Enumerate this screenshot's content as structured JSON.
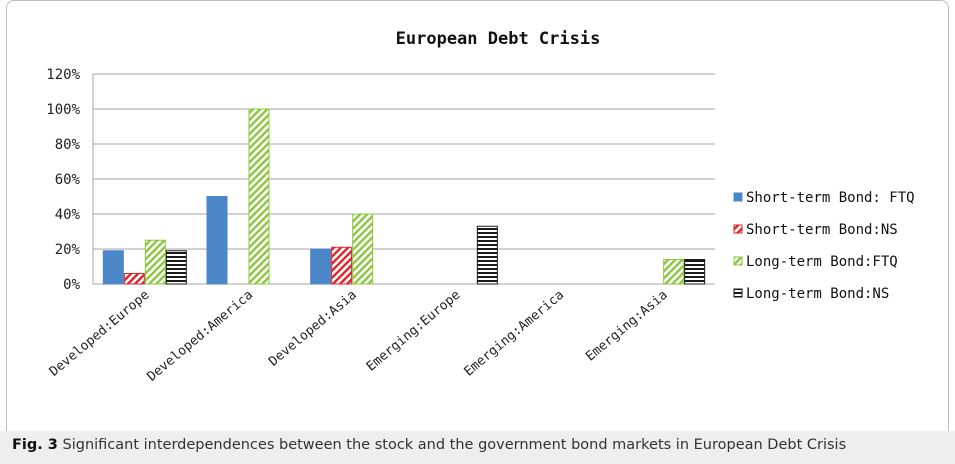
{
  "chart_data": {
    "type": "bar",
    "title": "European Debt Crisis",
    "xlabel": "",
    "ylabel": "",
    "ylim": [
      0,
      120
    ],
    "yticks": [
      0,
      20,
      40,
      60,
      80,
      100,
      120
    ],
    "ytick_labels": [
      "0%",
      "20%",
      "40%",
      "60%",
      "80%",
      "100%",
      "120%"
    ],
    "grid": true,
    "legend_position": "right",
    "categories": [
      "Developed:Europe",
      "Developed:America",
      "Developed:Asia",
      "Emerging:Europe",
      "Emerging:America",
      "Emerging:Asia"
    ],
    "series": [
      {
        "name": "Short-term Bond: FTQ",
        "values": [
          19,
          50,
          20,
          0,
          0,
          0
        ],
        "color": "#4a86c8",
        "pattern": "solid"
      },
      {
        "name": "Short-term Bond:NS",
        "values": [
          6,
          0,
          21,
          0,
          0,
          0
        ],
        "color": "#e0222b",
        "pattern": "diagonal"
      },
      {
        "name": "Long-term Bond:FTQ",
        "values": [
          25,
          100,
          40,
          0,
          0,
          14
        ],
        "color": "#8cc63f",
        "pattern": "diagonal"
      },
      {
        "name": "Long-term Bond:NS",
        "values": [
          19,
          0,
          0,
          33,
          0,
          14
        ],
        "color": "#1a1a1a",
        "pattern": "horizontal"
      }
    ]
  },
  "caption": {
    "label": "Fig. 3",
    "text": "Significant interdependences between the stock and the government bond markets in European Debt Crisis"
  }
}
